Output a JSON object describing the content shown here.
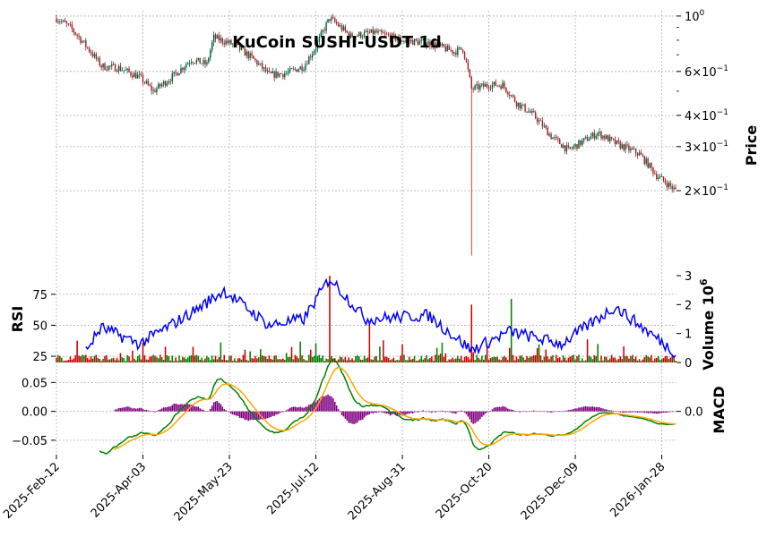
{
  "chart_data": {
    "type": "candlestick-financial",
    "title": "KuCoin SUSHI-USDT 1d",
    "x_tick_labels": [
      "2025-Feb-12",
      "2025-Apr-03",
      "2025-May-23",
      "2025-Jul-12",
      "2025-Aug-31",
      "2025-Oct-20",
      "2025-Dec-09",
      "2026-Jan-28"
    ],
    "panels": {
      "price": {
        "ylabel": "Price",
        "scale": "log",
        "ylim": [
          0.1,
          1.05
        ],
        "tick_labels": [
          "10^0",
          "6×10^-1",
          "4×10^-1",
          "3×10^-1",
          "2×10^-1"
        ],
        "close_anchors": [
          {
            "date": "2025-02-12",
            "close": 0.98
          },
          {
            "date": "2025-02-20",
            "close": 0.9
          },
          {
            "date": "2025-03-01",
            "close": 0.76
          },
          {
            "date": "2025-03-10",
            "close": 0.63
          },
          {
            "date": "2025-03-20",
            "close": 0.62
          },
          {
            "date": "2025-04-01",
            "close": 0.57
          },
          {
            "date": "2025-04-09",
            "close": 0.5
          },
          {
            "date": "2025-04-20",
            "close": 0.57
          },
          {
            "date": "2025-05-01",
            "close": 0.67
          },
          {
            "date": "2025-05-10",
            "close": 0.64
          },
          {
            "date": "2025-05-14",
            "close": 0.82
          },
          {
            "date": "2025-05-25",
            "close": 0.77
          },
          {
            "date": "2025-06-05",
            "close": 0.68
          },
          {
            "date": "2025-06-15",
            "close": 0.58
          },
          {
            "date": "2025-06-25",
            "close": 0.59
          },
          {
            "date": "2025-07-05",
            "close": 0.63
          },
          {
            "date": "2025-07-12",
            "close": 0.75
          },
          {
            "date": "2025-07-20",
            "close": 0.98
          },
          {
            "date": "2025-08-01",
            "close": 0.83
          },
          {
            "date": "2025-08-15",
            "close": 0.86
          },
          {
            "date": "2025-08-31",
            "close": 0.8
          },
          {
            "date": "2025-09-15",
            "close": 0.78
          },
          {
            "date": "2025-09-30",
            "close": 0.72
          },
          {
            "date": "2025-10-05",
            "close": 0.74
          },
          {
            "date": "2025-10-10",
            "close": 0.51
          },
          {
            "date": "2025-10-20",
            "close": 0.53
          },
          {
            "date": "2025-10-28",
            "close": 0.53
          },
          {
            "date": "2025-11-05",
            "close": 0.45
          },
          {
            "date": "2025-11-15",
            "close": 0.4
          },
          {
            "date": "2025-11-25",
            "close": 0.33
          },
          {
            "date": "2025-12-05",
            "close": 0.29
          },
          {
            "date": "2025-12-15",
            "close": 0.32
          },
          {
            "date": "2025-12-22",
            "close": 0.34
          },
          {
            "date": "2026-01-01",
            "close": 0.31
          },
          {
            "date": "2026-01-15",
            "close": 0.28
          },
          {
            "date": "2026-01-25",
            "close": 0.23
          },
          {
            "date": "2026-02-05",
            "close": 0.2
          }
        ],
        "flash_crash": {
          "date": "2025-10-10",
          "low": 0.11
        },
        "up_color": "#006340",
        "down_color": "#a02128"
      },
      "rsi": {
        "ylabel": "RSI",
        "tick_labels": [
          "75",
          "50",
          "25"
        ],
        "ylim": [
          20,
          90
        ],
        "color": "#0000ff",
        "anchors": [
          {
            "date": "2025-03-01",
            "value": 30
          },
          {
            "date": "2025-03-10",
            "value": 48
          },
          {
            "date": "2025-04-01",
            "value": 35
          },
          {
            "date": "2025-05-01",
            "value": 60
          },
          {
            "date": "2025-05-20",
            "value": 78
          },
          {
            "date": "2025-06-15",
            "value": 50
          },
          {
            "date": "2025-07-05",
            "value": 55
          },
          {
            "date": "2025-07-20",
            "value": 88
          },
          {
            "date": "2025-08-10",
            "value": 55
          },
          {
            "date": "2025-09-15",
            "value": 58
          },
          {
            "date": "2025-10-10",
            "value": 30
          },
          {
            "date": "2025-11-01",
            "value": 45
          },
          {
            "date": "2025-12-01",
            "value": 35
          },
          {
            "date": "2026-01-01",
            "value": 65
          },
          {
            "date": "2026-02-05",
            "value": 28
          }
        ]
      },
      "volume": {
        "ylabel": "Volume  10^6",
        "tick_labels": [
          "3",
          "2",
          "1",
          "0"
        ],
        "ylim": [
          0,
          3
        ],
        "spikes": [
          {
            "date": "2025-07-20",
            "value": 3.0
          },
          {
            "date": "2025-10-10",
            "value": 2.0
          },
          {
            "date": "2025-11-02",
            "value": 2.2
          },
          {
            "date": "2025-08-12",
            "value": 1.4
          }
        ]
      },
      "macd": {
        "ylabel": "MACD",
        "tick_labels": [
          "0.05",
          "0.00",
          "−0.05"
        ],
        "right_tick_labels": [
          "0.0"
        ],
        "ylim": [
          -0.075,
          0.08
        ],
        "series": [
          {
            "color": "#008000"
          },
          {
            "color": "#ffa500"
          }
        ],
        "hist_color": "#800080"
      }
    }
  }
}
